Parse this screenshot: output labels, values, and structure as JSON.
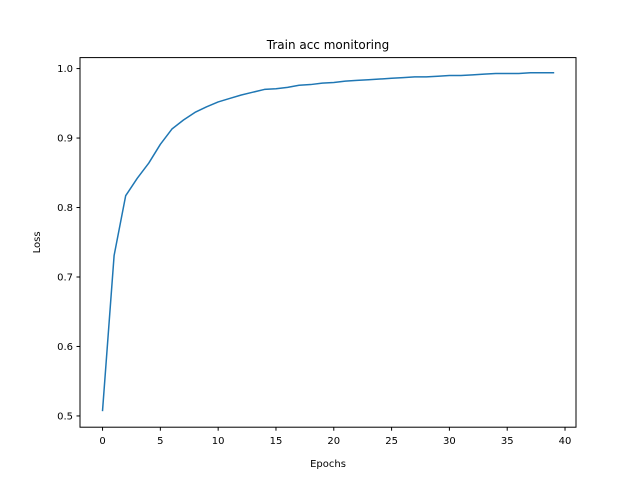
{
  "chart_data": {
    "type": "line",
    "title": "Train acc monitoring",
    "xlabel": "Epochs",
    "ylabel": "Loss",
    "xlim": [
      -1.95,
      40.95
    ],
    "ylim": [
      0.4838,
      1.0158
    ],
    "xticks": [
      0,
      5,
      10,
      15,
      20,
      25,
      30,
      35,
      40
    ],
    "yticks": [
      0.5,
      0.6,
      0.7,
      0.8,
      0.9,
      1.0
    ],
    "ytick_labels": [
      "0.5",
      "0.6",
      "0.7",
      "0.8",
      "0.9",
      "1.0"
    ],
    "grid": false,
    "series": [
      {
        "color": "#1f77b4",
        "x": [
          0,
          1,
          2,
          3,
          4,
          5,
          6,
          7,
          8,
          9,
          10,
          11,
          12,
          13,
          14,
          15,
          16,
          17,
          18,
          19,
          20,
          21,
          22,
          23,
          24,
          25,
          26,
          27,
          28,
          29,
          30,
          31,
          32,
          33,
          34,
          35,
          36,
          37,
          38,
          39
        ],
        "y": [
          0.508,
          0.731,
          0.817,
          0.842,
          0.864,
          0.891,
          0.913,
          0.926,
          0.937,
          0.945,
          0.952,
          0.957,
          0.962,
          0.966,
          0.97,
          0.971,
          0.973,
          0.976,
          0.977,
          0.979,
          0.98,
          0.982,
          0.983,
          0.984,
          0.985,
          0.986,
          0.987,
          0.988,
          0.988,
          0.989,
          0.99,
          0.99,
          0.991,
          0.992,
          0.993,
          0.993,
          0.993,
          0.994,
          0.994,
          0.994
        ]
      }
    ]
  }
}
